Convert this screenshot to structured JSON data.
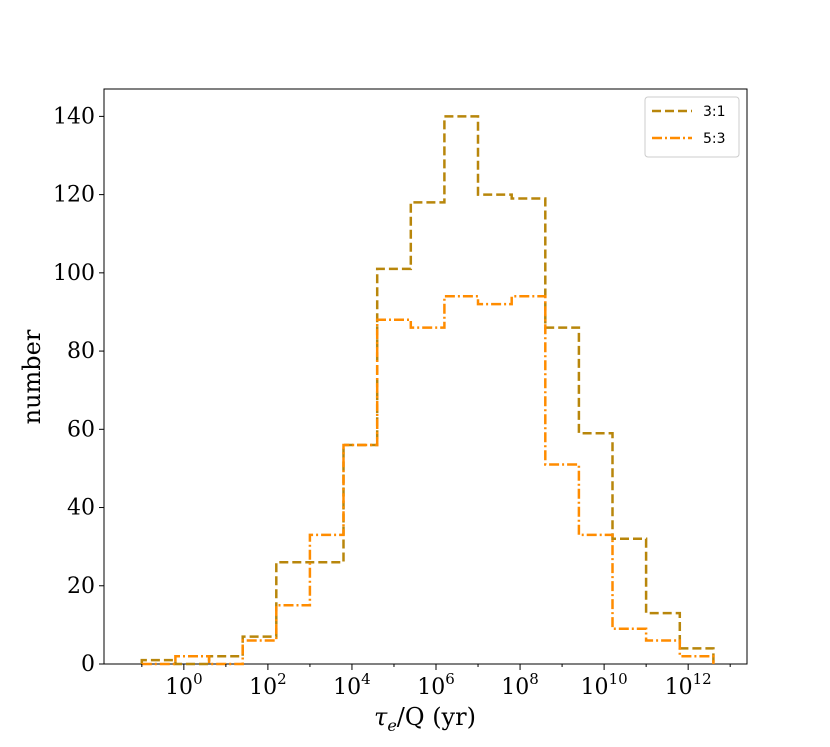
{
  "chart_data": {
    "type": "histogram",
    "xscale": "log",
    "xlabel_main": "τ",
    "xlabel_sub": "e",
    "xlabel_rest": "/Q (yr)",
    "ylabel": "number",
    "ylim": [
      0,
      147
    ],
    "xlim_log10": [
      -1.9,
      13.4
    ],
    "yticks": [
      "0",
      "20",
      "40",
      "60",
      "80",
      "100",
      "120",
      "140"
    ],
    "ytick_values": [
      0,
      20,
      40,
      60,
      80,
      100,
      120,
      140
    ],
    "xticks": [
      {
        "base": "10",
        "exp": "0",
        "log10": 0
      },
      {
        "base": "10",
        "exp": "2",
        "log10": 2
      },
      {
        "base": "10",
        "exp": "4",
        "log10": 4
      },
      {
        "base": "10",
        "exp": "6",
        "log10": 6
      },
      {
        "base": "10",
        "exp": "8",
        "log10": 8
      },
      {
        "base": "10",
        "exp": "10",
        "log10": 10
      },
      {
        "base": "10",
        "exp": "12",
        "log10": 12
      }
    ],
    "bin_edges_log10": [
      -1.0,
      -0.2,
      0.6,
      1.4,
      2.2,
      3.0,
      3.8,
      4.6,
      5.4,
      6.2,
      7.0,
      7.8,
      8.6,
      9.4,
      10.2,
      11.0,
      11.8,
      12.6
    ],
    "legend_position": "upper right",
    "series": [
      {
        "name": "3:1",
        "color": "#b8860b",
        "linestyle": "dashed",
        "values": [
          1,
          0,
          2,
          7,
          26,
          26,
          56,
          101,
          118,
          140,
          120,
          119,
          86,
          59,
          32,
          13,
          4,
          0
        ]
      },
      {
        "name": "5:3",
        "color": "#ff8c00",
        "linestyle": "dashdot",
        "values": [
          0,
          2,
          0,
          6,
          15,
          33,
          56,
          88,
          86,
          94,
          92,
          94,
          51,
          33,
          9,
          6,
          2,
          0
        ]
      }
    ]
  }
}
